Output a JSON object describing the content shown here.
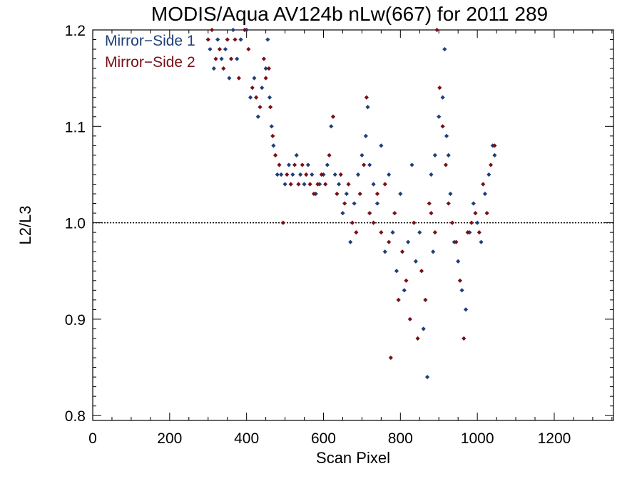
{
  "chart_data": {
    "type": "scatter",
    "title": "MODIS/Aqua AV124b nLw(667) for 2011 289",
    "xlabel": "Scan Pixel",
    "ylabel": "L2/L3",
    "xlim": [
      0,
      1354
    ],
    "ylim": [
      0.795,
      1.2
    ],
    "x_ticks": [
      "0",
      "200",
      "400",
      "600",
      "800",
      "1000",
      "1200"
    ],
    "y_ticks": [
      "0.8",
      "0.9",
      "1.0",
      "1.1",
      "1.2"
    ],
    "reference_line": 1.0,
    "legend_position": "top-left",
    "grid": false,
    "series": [
      {
        "name": "Mirror−Side 1",
        "color": "#1f3f7a",
        "points": [
          [
            305,
            1.18
          ],
          [
            315,
            1.16
          ],
          [
            325,
            1.19
          ],
          [
            335,
            1.17
          ],
          [
            345,
            1.18
          ],
          [
            355,
            1.15
          ],
          [
            365,
            1.2
          ],
          [
            375,
            1.17
          ],
          [
            385,
            1.19
          ],
          [
            400,
            1.2
          ],
          [
            410,
            1.13
          ],
          [
            420,
            1.15
          ],
          [
            430,
            1.11
          ],
          [
            440,
            1.14
          ],
          [
            450,
            1.16
          ],
          [
            455,
            1.19
          ],
          [
            460,
            1.13
          ],
          [
            465,
            1.1
          ],
          [
            470,
            1.08
          ],
          [
            480,
            1.05
          ],
          [
            490,
            1.05
          ],
          [
            500,
            1.04
          ],
          [
            510,
            1.06
          ],
          [
            520,
            1.05
          ],
          [
            530,
            1.07
          ],
          [
            540,
            1.05
          ],
          [
            550,
            1.04
          ],
          [
            560,
            1.06
          ],
          [
            570,
            1.05
          ],
          [
            580,
            1.03
          ],
          [
            590,
            1.04
          ],
          [
            600,
            1.05
          ],
          [
            610,
            1.06
          ],
          [
            620,
            1.1
          ],
          [
            630,
            1.05
          ],
          [
            640,
            1.04
          ],
          [
            650,
            1.01
          ],
          [
            660,
            1.03
          ],
          [
            670,
            0.98
          ],
          [
            680,
            1.02
          ],
          [
            690,
            1.05
          ],
          [
            700,
            1.07
          ],
          [
            710,
            1.09
          ],
          [
            715,
            1.12
          ],
          [
            720,
            1.06
          ],
          [
            730,
            1.04
          ],
          [
            740,
            1.02
          ],
          [
            750,
            1.08
          ],
          [
            760,
            0.97
          ],
          [
            770,
            1.05
          ],
          [
            780,
            0.99
          ],
          [
            790,
            0.95
          ],
          [
            800,
            1.03
          ],
          [
            810,
            0.93
          ],
          [
            820,
            0.98
          ],
          [
            830,
            1.06
          ],
          [
            840,
            0.96
          ],
          [
            850,
            0.99
          ],
          [
            860,
            0.89
          ],
          [
            870,
            0.84
          ],
          [
            880,
            1.05
          ],
          [
            885,
            0.97
          ],
          [
            890,
            1.07
          ],
          [
            900,
            1.11
          ],
          [
            910,
            1.13
          ],
          [
            915,
            1.18
          ],
          [
            920,
            1.09
          ],
          [
            925,
            1.07
          ],
          [
            930,
            1.03
          ],
          [
            940,
            0.98
          ],
          [
            950,
            0.96
          ],
          [
            960,
            0.93
          ],
          [
            970,
            0.91
          ],
          [
            980,
            0.99
          ],
          [
            990,
            1.02
          ],
          [
            1000,
            1.0
          ],
          [
            1010,
            0.98
          ],
          [
            1020,
            1.03
          ],
          [
            1030,
            1.05
          ],
          [
            1040,
            1.08
          ],
          [
            1045,
            1.07
          ]
        ]
      },
      {
        "name": "Mirror−Side 2",
        "color": "#7a0e16",
        "points": [
          [
            300,
            1.19
          ],
          [
            310,
            1.2
          ],
          [
            320,
            1.17
          ],
          [
            330,
            1.18
          ],
          [
            340,
            1.16
          ],
          [
            350,
            1.19
          ],
          [
            360,
            1.17
          ],
          [
            370,
            1.19
          ],
          [
            380,
            1.15
          ],
          [
            395,
            1.2
          ],
          [
            405,
            1.18
          ],
          [
            415,
            1.14
          ],
          [
            425,
            1.13
          ],
          [
            435,
            1.12
          ],
          [
            445,
            1.17
          ],
          [
            450,
            1.15
          ],
          [
            458,
            1.16
          ],
          [
            462,
            1.12
          ],
          [
            468,
            1.09
          ],
          [
            475,
            1.07
          ],
          [
            485,
            1.06
          ],
          [
            495,
            1.0
          ],
          [
            505,
            1.05
          ],
          [
            515,
            1.04
          ],
          [
            525,
            1.06
          ],
          [
            535,
            1.04
          ],
          [
            545,
            1.06
          ],
          [
            555,
            1.05
          ],
          [
            565,
            1.04
          ],
          [
            575,
            1.03
          ],
          [
            585,
            1.04
          ],
          [
            595,
            1.05
          ],
          [
            605,
            1.04
          ],
          [
            615,
            1.07
          ],
          [
            625,
            1.11
          ],
          [
            635,
            1.03
          ],
          [
            645,
            1.05
          ],
          [
            655,
            1.02
          ],
          [
            665,
            1.04
          ],
          [
            675,
            1.0
          ],
          [
            685,
            0.99
          ],
          [
            695,
            1.03
          ],
          [
            705,
            1.06
          ],
          [
            712,
            1.13
          ],
          [
            720,
            1.01
          ],
          [
            730,
            1.0
          ],
          [
            740,
            1.03
          ],
          [
            750,
            0.99
          ],
          [
            760,
            1.04
          ],
          [
            770,
            0.98
          ],
          [
            775,
            0.86
          ],
          [
            785,
            1.01
          ],
          [
            795,
            0.92
          ],
          [
            805,
            0.97
          ],
          [
            815,
            0.94
          ],
          [
            825,
            0.9
          ],
          [
            835,
            1.0
          ],
          [
            845,
            0.88
          ],
          [
            855,
            0.95
          ],
          [
            865,
            0.92
          ],
          [
            875,
            1.02
          ],
          [
            880,
            1.01
          ],
          [
            890,
            0.99
          ],
          [
            895,
            1.2
          ],
          [
            902,
            1.14
          ],
          [
            910,
            1.1
          ],
          [
            918,
            1.06
          ],
          [
            925,
            1.02
          ],
          [
            935,
            1.0
          ],
          [
            945,
            0.98
          ],
          [
            955,
            0.94
          ],
          [
            965,
            0.88
          ],
          [
            975,
            0.99
          ],
          [
            985,
            1.0
          ],
          [
            995,
            1.01
          ],
          [
            1005,
            0.99
          ],
          [
            1015,
            1.04
          ],
          [
            1025,
            1.01
          ],
          [
            1035,
            1.06
          ],
          [
            1045,
            1.08
          ]
        ]
      }
    ]
  }
}
